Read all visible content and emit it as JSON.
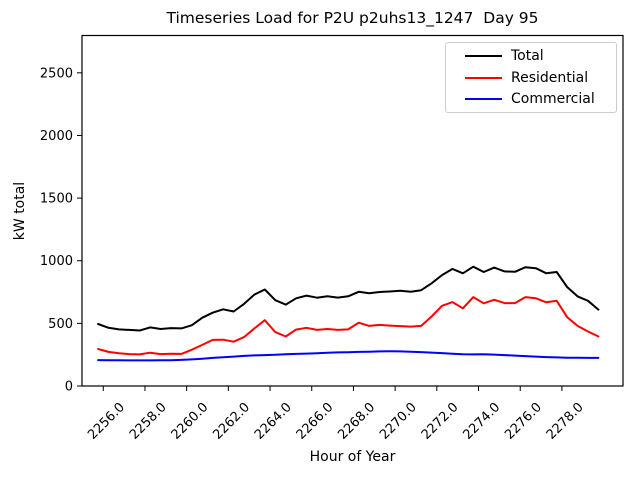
{
  "chart_data": {
    "type": "line",
    "title": "Timeseries Load for P2U p2uhs13_1247  Day 95",
    "xlabel": "Hour of Year",
    "ylabel": "kW total",
    "xlim": [
      2254.98,
      2280.93
    ],
    "ylim": [
      0,
      2798
    ],
    "grid": false,
    "legend_position": "upper right",
    "xticks": {
      "values": [
        2256,
        2258,
        2260,
        2262,
        2264,
        2266,
        2268,
        2270,
        2272,
        2274,
        2276,
        2278
      ],
      "labels": [
        "2256.0",
        "2258.0",
        "2260.0",
        "2262.0",
        "2264.0",
        "2266.0",
        "2268.0",
        "2270.0",
        "2272.0",
        "2274.0",
        "2276.0",
        "2278.0"
      ]
    },
    "yticks": {
      "values": [
        0,
        500,
        1000,
        1500,
        2000,
        2500
      ],
      "labels": [
        "0",
        "500",
        "1000",
        "1500",
        "2000",
        "2500"
      ]
    },
    "x": [
      2255.75,
      2256.25,
      2256.75,
      2257.25,
      2257.75,
      2258.25,
      2258.75,
      2259.25,
      2259.75,
      2260.25,
      2260.75,
      2261.25,
      2261.75,
      2262.25,
      2262.75,
      2263.25,
      2263.75,
      2264.25,
      2264.75,
      2265.25,
      2265.75,
      2266.25,
      2266.75,
      2267.25,
      2267.75,
      2268.25,
      2268.75,
      2269.25,
      2269.75,
      2270.25,
      2270.75,
      2271.25,
      2271.75,
      2272.25,
      2272.75,
      2273.25,
      2273.75,
      2274.25,
      2274.75,
      2275.25,
      2275.75,
      2276.25,
      2276.75,
      2277.25,
      2277.75,
      2278.25,
      2278.75,
      2279.25,
      2279.75
    ],
    "series": [
      {
        "name": "Total",
        "color": "#000000",
        "values": [
          495,
          465,
          452,
          448,
          443,
          468,
          455,
          462,
          460,
          485,
          545,
          585,
          612,
          595,
          655,
          730,
          770,
          685,
          650,
          700,
          722,
          705,
          716,
          706,
          716,
          752,
          740,
          750,
          754,
          760,
          752,
          765,
          820,
          885,
          935,
          900,
          952,
          910,
          945,
          915,
          912,
          948,
          940,
          900,
          910,
          790,
          715,
          680,
          610
        ]
      },
      {
        "name": "Residential",
        "color": "#ff0000",
        "values": [
          295,
          272,
          262,
          255,
          252,
          266,
          255,
          258,
          256,
          290,
          328,
          368,
          370,
          354,
          390,
          460,
          525,
          430,
          395,
          450,
          465,
          448,
          455,
          448,
          452,
          505,
          480,
          488,
          482,
          478,
          474,
          480,
          555,
          640,
          670,
          620,
          710,
          660,
          688,
          662,
          662,
          710,
          700,
          668,
          680,
          550,
          480,
          435,
          395
        ]
      },
      {
        "name": "Commercial",
        "color": "#0000ff",
        "values": [
          207,
          206,
          205,
          204,
          204,
          204,
          205,
          206,
          208,
          212,
          218,
          224,
          230,
          235,
          240,
          244,
          247,
          250,
          253,
          256,
          259,
          262,
          265,
          268,
          270,
          272,
          274,
          276,
          277,
          276,
          274,
          271,
          267,
          263,
          258,
          254,
          252,
          253,
          251,
          247,
          243,
          239,
          235,
          231,
          228,
          226,
          225,
          224,
          224
        ]
      }
    ]
  }
}
